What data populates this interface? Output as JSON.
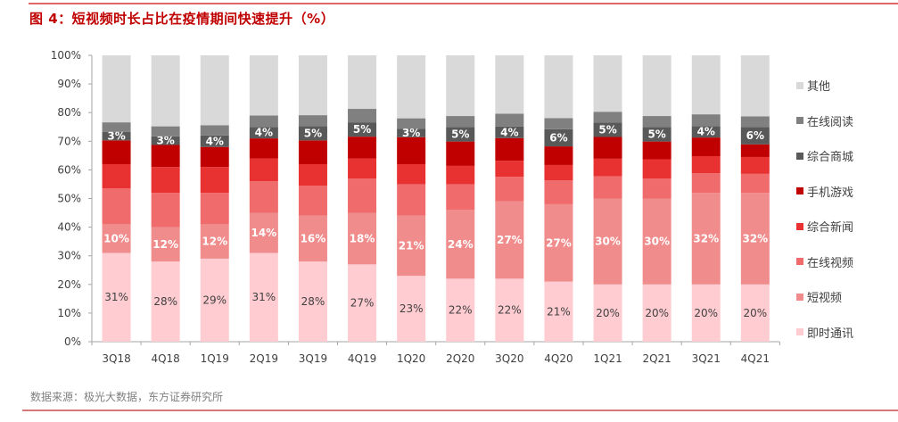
{
  "title": "图 4：短视频时长占比在疫情期间快速提升（%）",
  "source": "数据来源：极光大数据，东方证券研究所",
  "chart_data": {
    "type": "bar",
    "stacked": true,
    "title": "图 4：短视频时长占比在疫情期间快速提升（%）",
    "xlabel": "",
    "ylabel": "",
    "ylim": [
      0,
      100
    ],
    "yticks": [
      "0%",
      "10%",
      "20%",
      "30%",
      "40%",
      "50%",
      "60%",
      "70%",
      "80%",
      "90%",
      "100%"
    ],
    "grid": false,
    "legend": "right",
    "categories": [
      "3Q18",
      "4Q18",
      "1Q19",
      "2Q19",
      "3Q19",
      "4Q19",
      "1Q20",
      "2Q20",
      "3Q20",
      "4Q20",
      "1Q21",
      "2Q21",
      "3Q21",
      "4Q21"
    ],
    "series": [
      {
        "name": "即时通讯",
        "color": "#ffccd1",
        "labeled": true,
        "label_color": "#404040",
        "values": [
          31,
          28,
          29,
          31,
          28,
          27,
          23,
          22,
          22,
          21,
          20,
          20,
          20,
          20
        ]
      },
      {
        "name": "短视频",
        "color": "#f08c8c",
        "labeled": true,
        "label_color": "#ffffff",
        "values": [
          10,
          12,
          12,
          14,
          16,
          18,
          21,
          24,
          27,
          27,
          30,
          30,
          32,
          32
        ]
      },
      {
        "name": "在线视频",
        "color": "#f06b6b",
        "labeled": false,
        "values": [
          12.5,
          12,
          11,
          11,
          10.5,
          12,
          11,
          9,
          8.6,
          8.3,
          7.8,
          7,
          6.8,
          6.6
        ]
      },
      {
        "name": "综合新闻",
        "color": "#e83232",
        "labeled": false,
        "values": [
          8.5,
          9,
          9,
          8,
          7.5,
          7,
          7,
          6.4,
          5.6,
          5.4,
          6.1,
          6.7,
          6,
          5.9
        ]
      },
      {
        "name": "手机游戏",
        "color": "#c00000",
        "labeled": false,
        "values": [
          8.3,
          7.7,
          7,
          7,
          8.3,
          7.6,
          9.4,
          8.5,
          7.9,
          6.5,
          7.6,
          6.2,
          6.5,
          4.4
        ]
      },
      {
        "name": "综合商城",
        "color": "#595959",
        "labeled": true,
        "label_color": "#ffffff",
        "values": [
          3,
          3,
          4,
          4,
          5,
          5,
          3,
          5,
          4,
          6,
          5,
          5,
          4,
          6
        ]
      },
      {
        "name": "在线阅读",
        "color": "#808080",
        "labeled": false,
        "values": [
          3.3,
          3.5,
          3.6,
          4,
          3.8,
          4.7,
          3.6,
          3.9,
          4.5,
          3.9,
          3.8,
          3.9,
          4.1,
          3.8
        ]
      },
      {
        "name": "其他",
        "color": "#d9d9d9",
        "labeled": false,
        "values": [
          23.4,
          24.8,
          24.4,
          21,
          20.9,
          18.7,
          22,
          21.2,
          20.4,
          21.9,
          19.7,
          21.2,
          20.6,
          21.3
        ]
      }
    ]
  }
}
